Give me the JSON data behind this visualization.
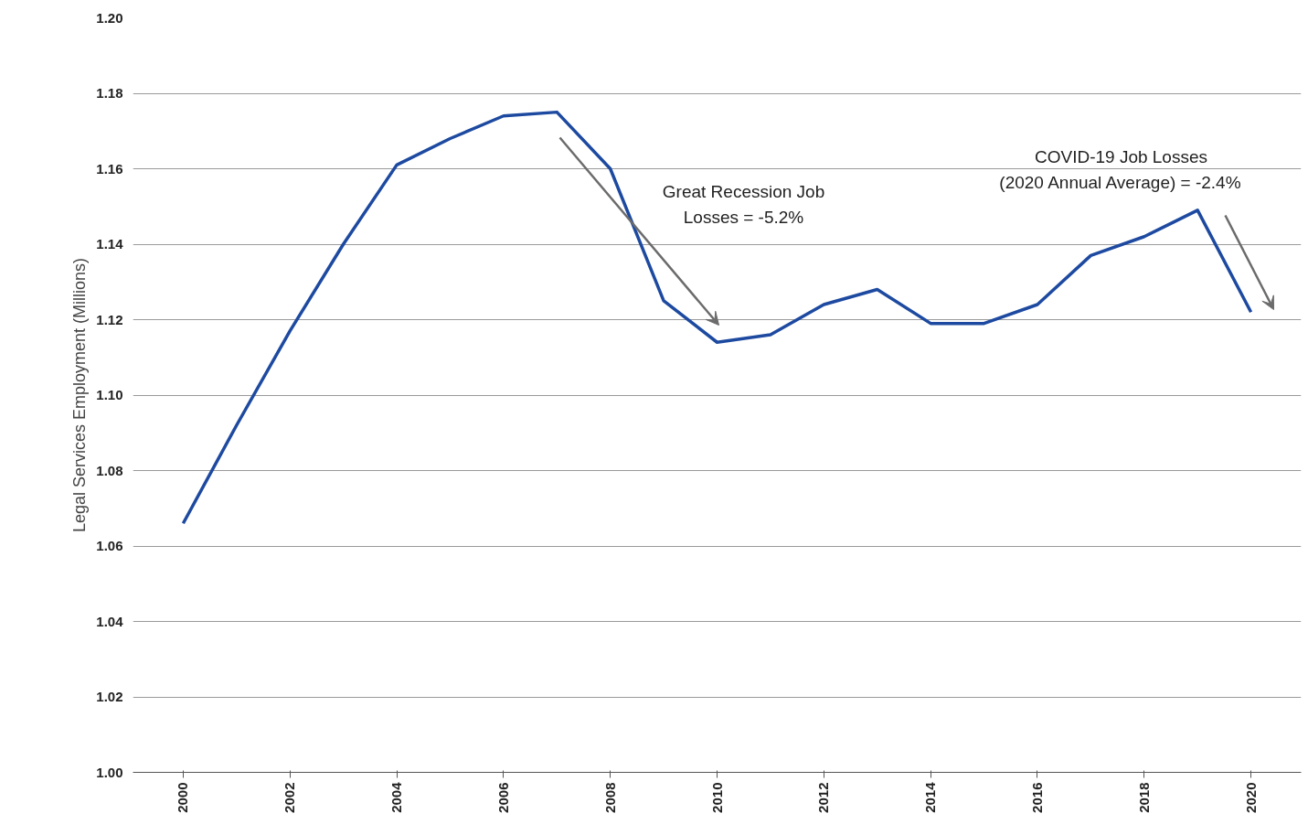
{
  "chart_data": {
    "type": "line",
    "ylabel": "Legal Services Employment (Millions)",
    "x": [
      2000,
      2001,
      2002,
      2003,
      2004,
      2005,
      2006,
      2007,
      2008,
      2009,
      2010,
      2011,
      2012,
      2013,
      2014,
      2015,
      2016,
      2017,
      2018,
      2019,
      2020
    ],
    "series": [
      {
        "color": "#1d4aa0",
        "values": [
          1.066,
          1.092,
          1.117,
          1.14,
          1.161,
          1.168,
          1.174,
          1.175,
          1.16,
          1.125,
          1.114,
          1.116,
          1.124,
          1.128,
          1.119,
          1.119,
          1.124,
          1.137,
          1.142,
          1.149,
          1.122
        ]
      }
    ],
    "xlim": [
      1999.06,
      2020.94
    ],
    "xticks": [
      2000,
      2002,
      2004,
      2006,
      2008,
      2010,
      2012,
      2014,
      2016,
      2018,
      2020
    ],
    "ylim": [
      1.0,
      1.2
    ],
    "yticks": [
      {
        "value": 1.0,
        "label": "1.00"
      },
      {
        "value": 1.02,
        "label": "1.02"
      },
      {
        "value": 1.04,
        "label": "1.04"
      },
      {
        "value": 1.06,
        "label": "1.06"
      },
      {
        "value": 1.08,
        "label": "1.08"
      },
      {
        "value": 1.1,
        "label": "1.10"
      },
      {
        "value": 1.12,
        "label": "1.12"
      },
      {
        "value": 1.14,
        "label": "1.14"
      },
      {
        "value": 1.16,
        "label": "1.16"
      },
      {
        "value": 1.18,
        "label": "1.18"
      },
      {
        "value": 1.2,
        "label": "1.20"
      }
    ],
    "annotations": [
      "Great Recession Job\nLosses = -5.2%",
      "COVID-19 Job Losses\n(2020 Annual Average) = -2.4%"
    ],
    "grid": "y",
    "marker": "none",
    "line_style": "solid"
  }
}
